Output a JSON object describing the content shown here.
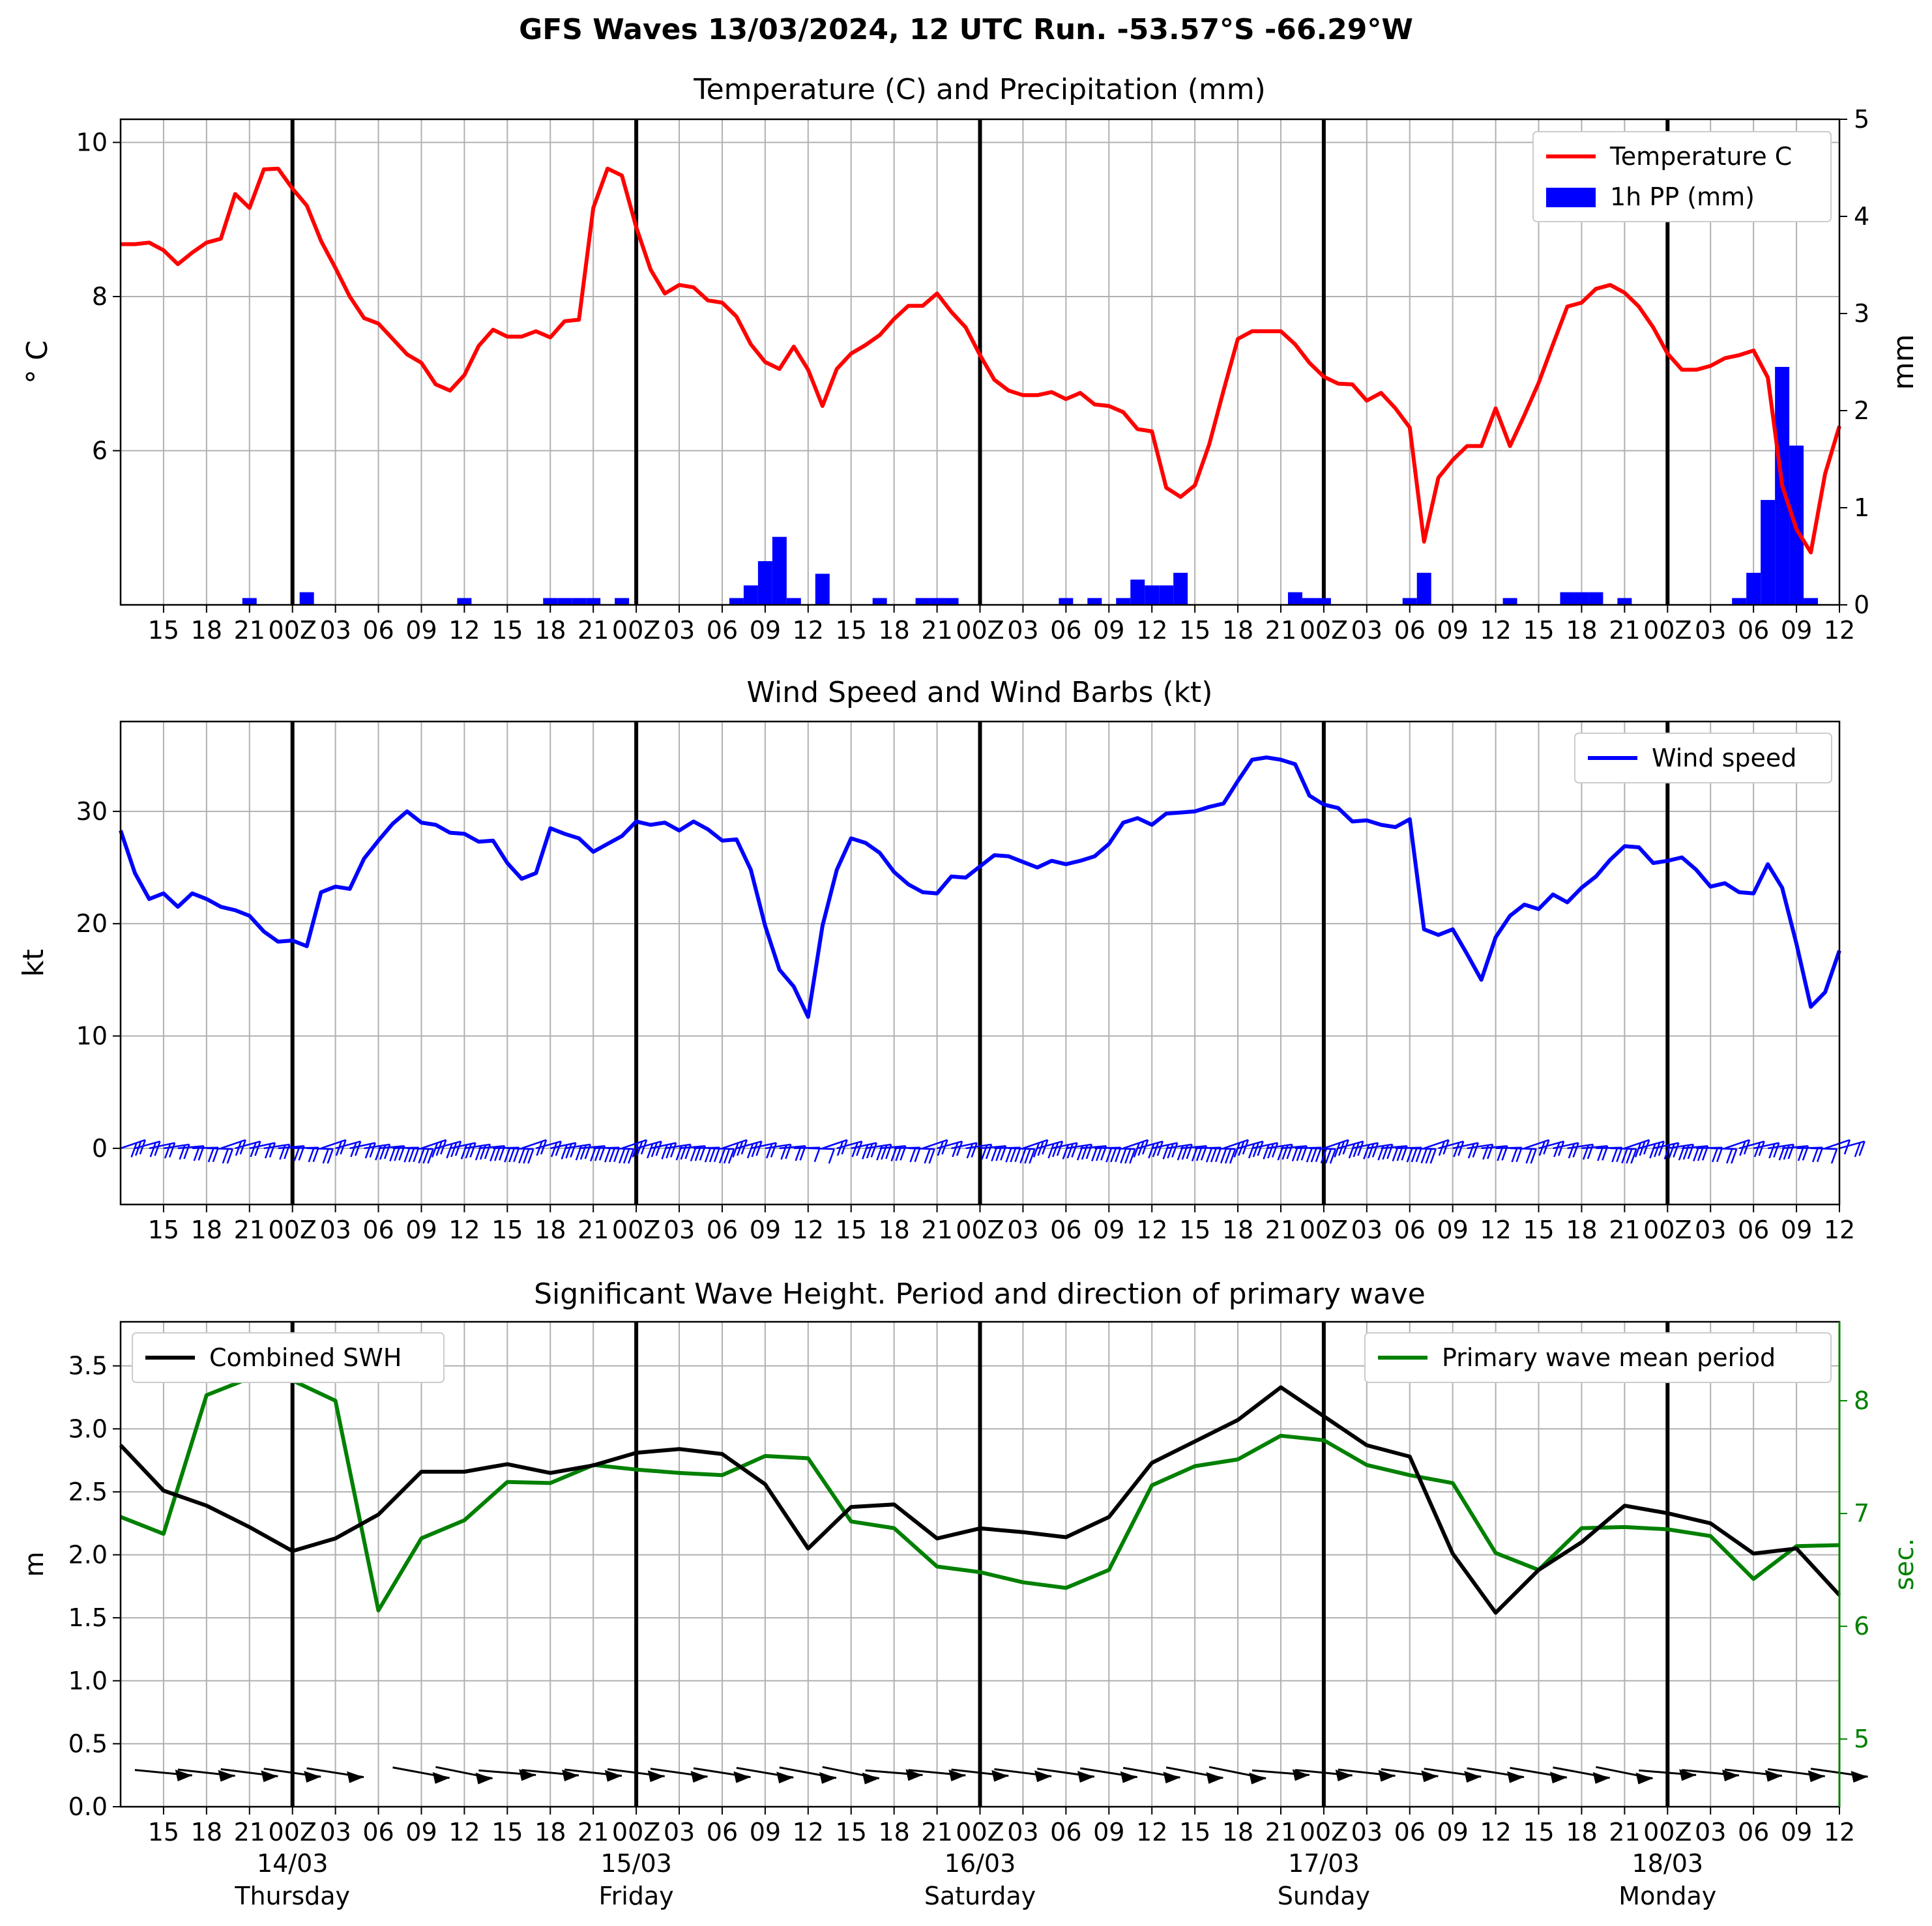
{
  "suptitle": "GFS Waves 13/03/2024, 12 UTC Run. -53.57°S -66.29°W",
  "colors": {
    "temperature": "#ff0000",
    "precip": "#0000ff",
    "wind": "#0000ff",
    "swh": "#000000",
    "period": "#008000",
    "grid": "#b0b0b0"
  },
  "time_axis": {
    "start": "13/03 12Z",
    "end": "18/03 12Z",
    "step_hours": 3,
    "tick_labels": [
      "15",
      "18",
      "21",
      "00Z",
      "03",
      "06",
      "09",
      "12",
      "15",
      "18",
      "21",
      "00Z",
      "03",
      "06",
      "09",
      "12",
      "15",
      "18",
      "21",
      "00Z",
      "03",
      "06",
      "09",
      "12",
      "15",
      "18",
      "21",
      "00Z",
      "03",
      "06",
      "09",
      "12",
      "15",
      "18",
      "21",
      "00Z",
      "03",
      "06",
      "09",
      "12"
    ],
    "day_labels": [
      {
        "date": "14/03",
        "day": "Thursday"
      },
      {
        "date": "15/03",
        "day": "Friday"
      },
      {
        "date": "16/03",
        "day": "Saturday"
      },
      {
        "date": "17/03",
        "day": "Sunday"
      },
      {
        "date": "18/03",
        "day": "Monday"
      }
    ]
  },
  "chart_data": [
    {
      "type": "line",
      "title": "Temperature (C) and Precipitation (mm)",
      "ylabel": "$^\\circ$C",
      "ylabel_display": "° C",
      "y2label": "mm",
      "ylim": [
        4.0,
        10.3
      ],
      "y2lim": [
        0,
        5
      ],
      "yticks": [
        6,
        8,
        10
      ],
      "y2ticks": [
        0,
        1,
        2,
        3,
        4,
        5
      ],
      "legend": "top-right",
      "grid": true,
      "series": [
        {
          "name": "Temperature C",
          "x_hours": [
            0,
            1,
            2,
            3,
            4,
            5,
            6,
            7,
            8,
            9,
            10,
            11,
            12,
            13,
            14,
            15,
            16,
            17,
            18,
            19,
            20,
            21,
            22,
            23,
            24,
            25,
            26,
            27,
            28,
            29,
            30,
            31,
            32,
            33,
            34,
            35,
            36,
            37,
            38,
            39,
            40,
            41,
            42,
            43,
            44,
            45,
            46,
            47,
            48,
            49,
            50,
            51,
            52,
            53,
            54,
            55,
            56,
            57,
            58,
            59,
            60,
            61,
            62,
            63,
            64,
            65,
            66,
            67,
            68,
            69,
            70,
            71,
            72,
            73,
            74,
            75,
            76,
            77,
            78,
            79,
            80,
            81,
            82,
            83,
            84,
            85,
            86,
            87,
            88,
            89,
            90,
            91,
            92,
            93,
            94,
            95,
            96,
            97,
            98,
            99,
            100,
            101,
            102,
            103,
            104,
            105,
            106,
            107,
            108,
            109,
            110,
            111,
            112,
            113,
            114,
            115,
            116,
            117,
            118,
            119,
            120
          ],
          "values": [
            8.68,
            8.68,
            8.7,
            8.6,
            8.42,
            8.57,
            8.7,
            8.75,
            9.33,
            9.15,
            9.65,
            9.66,
            9.4,
            9.18,
            8.72,
            8.37,
            8.0,
            7.72,
            7.65,
            7.45,
            7.25,
            7.14,
            6.86,
            6.78,
            6.98,
            7.36,
            7.57,
            7.48,
            7.48,
            7.55,
            7.47,
            7.68,
            7.7,
            9.15,
            9.66,
            9.57,
            8.9,
            8.35,
            8.04,
            8.15,
            8.12,
            7.95,
            7.92,
            7.74,
            7.38,
            7.15,
            7.06,
            7.35,
            7.05,
            6.58,
            7.06,
            7.26,
            7.37,
            7.5,
            7.71,
            7.88,
            7.88,
            8.04,
            7.8,
            7.6,
            7.24,
            6.92,
            6.78,
            6.72,
            6.72,
            6.76,
            6.67,
            6.75,
            6.6,
            6.58,
            6.5,
            6.28,
            6.25,
            5.52,
            5.4,
            5.55,
            6.08,
            6.78,
            7.45,
            7.55,
            7.55,
            7.55,
            7.38,
            7.14,
            6.96,
            6.87,
            6.86,
            6.65,
            6.75,
            6.55,
            6.3,
            4.82,
            5.65,
            5.88,
            6.06,
            6.06,
            6.55,
            6.06,
            6.46,
            6.88,
            7.38,
            7.87,
            7.92,
            8.1,
            8.15,
            8.05,
            7.87,
            7.6,
            7.26,
            7.05,
            7.05,
            7.1,
            7.2,
            7.24,
            7.3,
            6.95,
            5.55,
            4.98,
            4.68,
            5.7,
            6.32
          ]
        },
        {
          "name": "1h PP (mm)",
          "type": "bar",
          "axis": "right",
          "x_hours": [
            9,
            13,
            24,
            30,
            31,
            32,
            33,
            35,
            43,
            44,
            45,
            46,
            47,
            49,
            53,
            56,
            57,
            58,
            66,
            68,
            70,
            71,
            72,
            73,
            74,
            82,
            83,
            84,
            90,
            91,
            97,
            101,
            102,
            103,
            105,
            113,
            114,
            115,
            116,
            117,
            118
          ],
          "values": [
            0.07,
            0.13,
            0.07,
            0.07,
            0.07,
            0.07,
            0.07,
            0.07,
            0.07,
            0.2,
            0.45,
            0.7,
            0.07,
            0.32,
            0.07,
            0.07,
            0.07,
            0.07,
            0.07,
            0.07,
            0.07,
            0.26,
            0.2,
            0.2,
            0.33,
            0.13,
            0.07,
            0.07,
            0.07,
            0.33,
            0.07,
            0.13,
            0.13,
            0.13,
            0.07,
            0.07,
            0.33,
            1.08,
            2.45,
            1.64,
            0.07
          ]
        }
      ]
    },
    {
      "type": "line",
      "title": "Wind Speed and Wind Barbs (kt)",
      "ylabel": "kt",
      "ylim": [
        -5,
        38
      ],
      "yticks": [
        0,
        10,
        20,
        30
      ],
      "legend": "top-right",
      "grid": true,
      "series": [
        {
          "name": "Wind speed",
          "x_hours": [
            0,
            1,
            2,
            3,
            4,
            5,
            6,
            7,
            8,
            9,
            10,
            11,
            12,
            13,
            14,
            15,
            16,
            17,
            18,
            19,
            20,
            21,
            22,
            23,
            24,
            25,
            26,
            27,
            28,
            29,
            30,
            31,
            32,
            33,
            34,
            35,
            36,
            37,
            38,
            39,
            40,
            41,
            42,
            43,
            44,
            45,
            46,
            47,
            48,
            49,
            50,
            51,
            52,
            53,
            54,
            55,
            56,
            57,
            58,
            59,
            60,
            61,
            62,
            63,
            64,
            65,
            66,
            67,
            68,
            69,
            70,
            71,
            72,
            73,
            74,
            75,
            76,
            77,
            78,
            79,
            80,
            81,
            82,
            83,
            84,
            85,
            86,
            87,
            88,
            89,
            90,
            91,
            92,
            93,
            94,
            95,
            96,
            97,
            98,
            99,
            100,
            101,
            102,
            103,
            104,
            105,
            106,
            107,
            108,
            109,
            110,
            111,
            112,
            113,
            114,
            115,
            116,
            117,
            118,
            119,
            120
          ],
          "values": [
            28.3,
            24.5,
            22.2,
            22.7,
            21.5,
            22.7,
            22.2,
            21.5,
            21.2,
            20.7,
            19.3,
            18.4,
            18.5,
            18.0,
            22.8,
            23.3,
            23.1,
            25.8,
            27.4,
            28.9,
            30.0,
            29.0,
            28.8,
            28.1,
            28.0,
            27.3,
            27.4,
            25.4,
            24.0,
            24.5,
            28.5,
            28.0,
            27.6,
            26.4,
            27.1,
            27.8,
            29.1,
            28.8,
            29.0,
            28.3,
            29.1,
            28.4,
            27.4,
            27.5,
            24.8,
            19.8,
            15.9,
            14.4,
            11.7,
            19.8,
            24.8,
            27.6,
            27.2,
            26.3,
            24.6,
            23.5,
            22.8,
            22.7,
            24.2,
            24.1,
            25.1,
            26.1,
            26.0,
            25.5,
            25.0,
            25.6,
            25.3,
            25.6,
            26.0,
            27.1,
            29.0,
            29.4,
            28.8,
            29.8,
            29.9,
            30.0,
            30.4,
            30.7,
            32.7,
            34.6,
            34.8,
            34.6,
            34.2,
            31.4,
            30.6,
            30.3,
            29.1,
            29.2,
            28.8,
            28.6,
            29.3,
            19.5,
            19.0,
            19.5,
            17.3,
            15.0,
            18.8,
            20.7,
            21.7,
            21.3,
            22.6,
            21.9,
            23.2,
            24.2,
            25.7,
            26.9,
            26.8,
            25.4,
            25.6,
            25.9,
            24.8,
            23.3,
            23.6,
            22.8,
            22.7,
            25.3,
            23.2,
            18.2,
            12.6,
            13.9,
            17.6
          ]
        }
      ]
    },
    {
      "type": "line",
      "title": "Significant Wave Height. Period and direction of primary wave",
      "ylabel": "m",
      "y2label": "sec.",
      "ylim": [
        0,
        3.85
      ],
      "y2lim": [
        4.4,
        8.7
      ],
      "yticks": [
        0.0,
        0.5,
        1.0,
        1.5,
        2.0,
        2.5,
        3.0,
        3.5
      ],
      "y2ticks": [
        5,
        6,
        7,
        8
      ],
      "grid": true,
      "series": [
        {
          "name": "Combined SWH",
          "legend": "top-left",
          "x_hours": [
            0,
            3,
            6,
            9,
            12,
            15,
            18,
            21,
            24,
            27,
            30,
            33,
            36,
            39,
            42,
            45,
            48,
            51,
            54,
            57,
            60,
            63,
            66,
            69,
            72,
            75,
            78,
            81,
            84,
            87,
            90,
            93,
            96,
            99,
            102,
            105,
            108,
            111,
            114,
            117,
            120
          ],
          "values": [
            2.87,
            2.51,
            2.39,
            2.22,
            2.03,
            2.13,
            2.32,
            2.66,
            2.66,
            2.72,
            2.65,
            2.71,
            2.81,
            2.84,
            2.8,
            2.56,
            2.05,
            2.38,
            2.4,
            2.13,
            2.21,
            2.18,
            2.14,
            2.3,
            2.73,
            2.9,
            3.07,
            3.33,
            3.1,
            2.87,
            2.78,
            2.01,
            1.54,
            1.88,
            2.1,
            2.39,
            2.33,
            2.25,
            2.01,
            2.05,
            1.68
          ]
        },
        {
          "name": "Primary wave mean period",
          "axis": "right",
          "legend": "top-right",
          "x_hours": [
            0,
            3,
            6,
            9,
            12,
            15,
            18,
            21,
            24,
            27,
            30,
            33,
            36,
            39,
            42,
            45,
            48,
            51,
            54,
            57,
            60,
            63,
            66,
            69,
            72,
            75,
            78,
            81,
            84,
            87,
            90,
            93,
            96,
            99,
            102,
            105,
            108,
            111,
            114,
            117,
            120
          ],
          "values": [
            6.97,
            6.82,
            8.05,
            8.2,
            8.18,
            8.0,
            6.14,
            6.78,
            6.94,
            7.28,
            7.27,
            7.43,
            7.39,
            7.36,
            7.34,
            7.51,
            7.49,
            6.93,
            6.87,
            6.53,
            6.48,
            6.39,
            6.34,
            6.5,
            7.25,
            7.42,
            7.48,
            7.69,
            7.65,
            7.43,
            7.34,
            7.27,
            6.65,
            6.5,
            6.87,
            6.88,
            6.86,
            6.8,
            6.42,
            6.71,
            6.72
          ]
        }
      ]
    }
  ]
}
